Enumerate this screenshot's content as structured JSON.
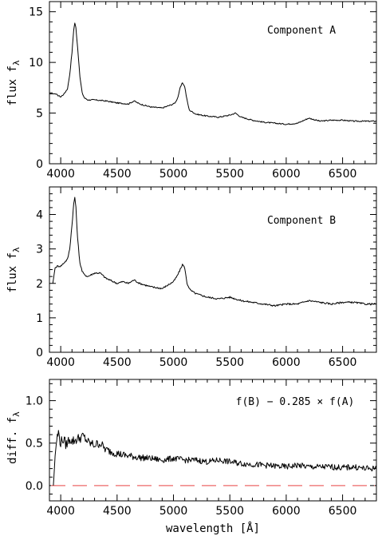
{
  "chart_data": [
    {
      "type": "line",
      "annotation": "Component A",
      "ylabel": "flux f",
      "ylabel_sub": "λ",
      "xlabel": "",
      "xlim": [
        3900,
        6800
      ],
      "ylim": [
        0,
        16
      ],
      "xticks": [
        4000,
        4500,
        5000,
        5500,
        6000,
        6500
      ],
      "yticks": [
        0,
        5,
        10,
        15
      ],
      "series": [
        {
          "x": [
            3900,
            3950,
            4000,
            4030,
            4060,
            4080,
            4100,
            4115,
            4125,
            4135,
            4150,
            4170,
            4190,
            4210,
            4240,
            4300,
            4400,
            4500,
            4600,
            4650,
            4700,
            4800,
            4900,
            4950,
            5000,
            5020,
            5040,
            5060,
            5080,
            5100,
            5120,
            5140,
            5200,
            5300,
            5400,
            5500,
            5550,
            5600,
            5700,
            5800,
            5900,
            6000,
            6100,
            6200,
            6300,
            6400,
            6500,
            6600,
            6700,
            6800
          ],
          "y": [
            6.9,
            6.9,
            6.6,
            6.9,
            7.4,
            8.8,
            11.0,
            13.2,
            13.9,
            13.4,
            11.5,
            8.6,
            7.0,
            6.5,
            6.3,
            6.3,
            6.2,
            6.0,
            5.9,
            6.2,
            5.9,
            5.6,
            5.5,
            5.7,
            5.9,
            6.1,
            6.6,
            7.5,
            8.0,
            7.6,
            6.3,
            5.3,
            4.9,
            4.7,
            4.6,
            4.8,
            5.0,
            4.6,
            4.3,
            4.1,
            4.0,
            3.9,
            4.0,
            4.5,
            4.2,
            4.3,
            4.3,
            4.2,
            4.2,
            4.2
          ]
        }
      ]
    },
    {
      "type": "line",
      "annotation": "Component B",
      "ylabel": "flux f",
      "ylabel_sub": "λ",
      "xlabel": "",
      "xlim": [
        3900,
        6800
      ],
      "ylim": [
        0,
        4.8
      ],
      "xticks": [
        4000,
        4500,
        5000,
        5500,
        6000,
        6500
      ],
      "yticks": [
        0,
        1,
        2,
        3,
        4
      ],
      "series": [
        {
          "x": [
            3930,
            3950,
            3970,
            4000,
            4030,
            4060,
            4080,
            4100,
            4115,
            4125,
            4135,
            4150,
            4170,
            4190,
            4210,
            4240,
            4300,
            4350,
            4400,
            4500,
            4550,
            4600,
            4650,
            4700,
            4800,
            4900,
            4950,
            5000,
            5030,
            5060,
            5080,
            5100,
            5120,
            5150,
            5200,
            5300,
            5400,
            5500,
            5600,
            5700,
            5800,
            5900,
            6000,
            6100,
            6200,
            6300,
            6400,
            6500,
            6600,
            6700,
            6800
          ],
          "y": [
            2.0,
            2.45,
            2.5,
            2.5,
            2.6,
            2.7,
            3.0,
            3.7,
            4.3,
            4.5,
            4.2,
            3.3,
            2.6,
            2.35,
            2.25,
            2.2,
            2.3,
            2.3,
            2.15,
            2.0,
            2.05,
            2.0,
            2.1,
            2.0,
            1.9,
            1.85,
            1.95,
            2.05,
            2.2,
            2.4,
            2.55,
            2.45,
            2.0,
            1.8,
            1.7,
            1.6,
            1.55,
            1.6,
            1.5,
            1.45,
            1.4,
            1.35,
            1.4,
            1.4,
            1.5,
            1.45,
            1.4,
            1.45,
            1.45,
            1.4,
            1.4
          ]
        }
      ]
    },
    {
      "type": "line",
      "annotation": "f(B) − 0.285 × f(A)",
      "ylabel": "diff. f",
      "ylabel_sub": "λ",
      "xlabel": "wavelength [Å]",
      "xlim": [
        3900,
        6800
      ],
      "ylim": [
        -0.18,
        1.25
      ],
      "xticks": [
        4000,
        4500,
        5000,
        5500,
        6000,
        6500
      ],
      "yticks": [
        0.0,
        0.5,
        1.0
      ],
      "ytick_labels": [
        "0.0",
        "0.5",
        "1.0"
      ],
      "reference_line": {
        "y": 0,
        "color": "#f08080",
        "style": "dashed"
      },
      "series": [
        {
          "x": [
            3935,
            3950,
            3965,
            3980,
            4000,
            4020,
            4050,
            4080,
            4100,
            4150,
            4200,
            4250,
            4300,
            4350,
            4400,
            4450,
            4500,
            4550,
            4600,
            4700,
            4800,
            4900,
            5000,
            5100,
            5200,
            5300,
            5400,
            5500,
            5600,
            5700,
            5800,
            5900,
            6000,
            6100,
            6200,
            6300,
            6400,
            6500,
            6600,
            6700,
            6800
          ],
          "y": [
            0.0,
            0.35,
            0.55,
            0.62,
            0.5,
            0.55,
            0.48,
            0.56,
            0.52,
            0.55,
            0.58,
            0.5,
            0.48,
            0.5,
            0.42,
            0.4,
            0.38,
            0.36,
            0.35,
            0.33,
            0.32,
            0.3,
            0.32,
            0.3,
            0.3,
            0.28,
            0.3,
            0.28,
            0.26,
            0.25,
            0.24,
            0.23,
            0.22,
            0.24,
            0.22,
            0.22,
            0.22,
            0.21,
            0.22,
            0.2,
            0.2
          ]
        }
      ]
    }
  ]
}
